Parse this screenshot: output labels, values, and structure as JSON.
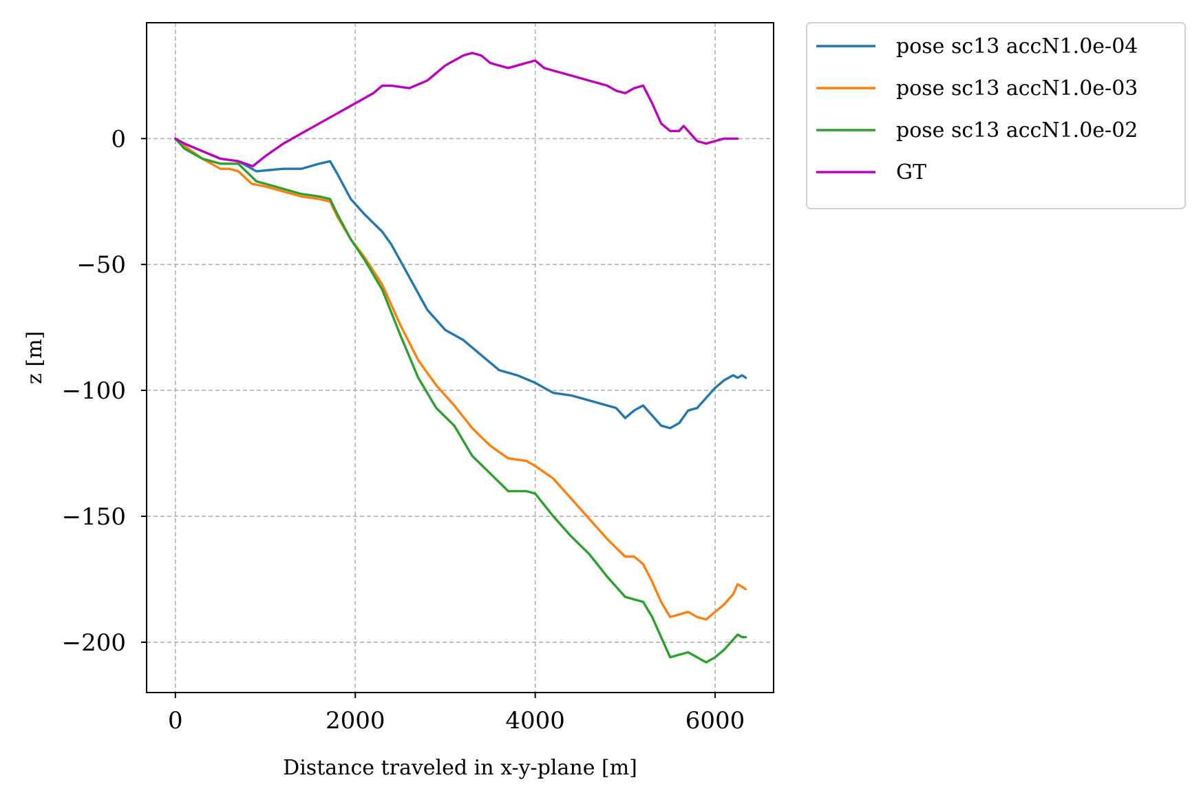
{
  "chart_data": {
    "type": "line",
    "title": "",
    "xlabel": "Distance traveled in x-y-plane [m]",
    "ylabel": "z [m]",
    "xlim": [
      -320,
      6650
    ],
    "ylim": [
      -220,
      46
    ],
    "x_ticks": [
      0,
      2000,
      4000,
      6000
    ],
    "y_ticks": [
      0,
      -50,
      -100,
      -150,
      -200
    ],
    "x_tick_labels": [
      "0",
      "2000",
      "4000",
      "6000"
    ],
    "y_tick_labels": [
      "0",
      "−50",
      "−100",
      "−150",
      "−200"
    ],
    "grid": true,
    "legend_position": "outside-top-right",
    "series": [
      {
        "name": "pose sc13 accN1.0e-04",
        "color": "#1f77b4",
        "x": [
          0,
          100,
          300,
          500,
          700,
          900,
          1200,
          1400,
          1600,
          1720,
          1800,
          1950,
          2100,
          2300,
          2400,
          2600,
          2800,
          3000,
          3200,
          3400,
          3600,
          3800,
          4000,
          4200,
          4400,
          4600,
          4800,
          4900,
          5000,
          5100,
          5200,
          5300,
          5400,
          5500,
          5600,
          5700,
          5800,
          5900,
          6000,
          6100,
          6200,
          6250,
          6300,
          6340
        ],
        "y": [
          0,
          -2,
          -5,
          -8,
          -9,
          -13,
          -12,
          -12,
          -10,
          -9,
          -14,
          -24,
          -30,
          -37,
          -42,
          -55,
          -68,
          -76,
          -80,
          -86,
          -92,
          -94,
          -97,
          -101,
          -102,
          -104,
          -106,
          -107,
          -111,
          -108,
          -106,
          -110,
          -114,
          -115,
          -113,
          -108,
          -107,
          -103,
          -99,
          -96,
          -94,
          -95,
          -94,
          -95
        ]
      },
      {
        "name": "pose sc13 accN1.0e-03",
        "color": "#ff7f0e",
        "x": [
          0,
          100,
          300,
          500,
          600,
          700,
          850,
          1000,
          1200,
          1400,
          1600,
          1720,
          1800,
          1950,
          2100,
          2300,
          2500,
          2700,
          2900,
          3100,
          3300,
          3500,
          3700,
          3900,
          4000,
          4200,
          4400,
          4600,
          4800,
          5000,
          5100,
          5200,
          5300,
          5400,
          5500,
          5600,
          5700,
          5800,
          5900,
          6000,
          6100,
          6200,
          6250,
          6300,
          6340
        ],
        "y": [
          0,
          -3,
          -8,
          -12,
          -12,
          -13,
          -18,
          -19,
          -21,
          -23,
          -24,
          -25,
          -31,
          -40,
          -47,
          -58,
          -74,
          -88,
          -98,
          -106,
          -115,
          -122,
          -127,
          -128,
          -130,
          -135,
          -143,
          -151,
          -159,
          -166,
          -166,
          -169,
          -176,
          -184,
          -190,
          -189,
          -188,
          -190,
          -191,
          -188,
          -185,
          -181,
          -177,
          -178,
          -179
        ]
      },
      {
        "name": "pose sc13 accN1.0e-02",
        "color": "#2ca02c",
        "x": [
          0,
          100,
          300,
          500,
          700,
          900,
          1200,
          1400,
          1600,
          1720,
          1800,
          1950,
          2100,
          2300,
          2500,
          2700,
          2900,
          3100,
          3300,
          3500,
          3700,
          3900,
          4000,
          4200,
          4400,
          4600,
          4800,
          5000,
          5100,
          5200,
          5300,
          5400,
          5500,
          5600,
          5700,
          5800,
          5900,
          6000,
          6100,
          6200,
          6250,
          6300,
          6340
        ],
        "y": [
          0,
          -4,
          -8,
          -10,
          -10,
          -17,
          -20,
          -22,
          -23,
          -24,
          -30,
          -40,
          -48,
          -60,
          -78,
          -95,
          -107,
          -114,
          -126,
          -133,
          -140,
          -140,
          -141,
          -150,
          -158,
          -165,
          -174,
          -182,
          -183,
          -184,
          -190,
          -198,
          -206,
          -205,
          -204,
          -206,
          -208,
          -206,
          -203,
          -199,
          -197,
          -198,
          -198
        ]
      },
      {
        "name": "GT",
        "color": "#bf00bf",
        "x": [
          0,
          100,
          300,
          500,
          700,
          860,
          1000,
          1200,
          1400,
          1600,
          1800,
          2000,
          2200,
          2300,
          2400,
          2600,
          2800,
          3000,
          3100,
          3200,
          3300,
          3400,
          3500,
          3600,
          3700,
          3800,
          3900,
          4000,
          4100,
          4200,
          4400,
          4600,
          4800,
          4900,
          5000,
          5100,
          5200,
          5300,
          5400,
          5500,
          5600,
          5650,
          5700,
          5800,
          5900,
          6000,
          6100,
          6200,
          6250
        ],
        "y": [
          0,
          -2,
          -5,
          -8,
          -9,
          -11,
          -7,
          -2,
          2,
          6,
          10,
          14,
          18,
          21,
          21,
          20,
          23,
          29,
          31,
          33,
          34,
          33,
          30,
          29,
          28,
          29,
          30,
          31,
          28,
          27,
          25,
          23,
          21,
          19,
          18,
          20,
          21,
          14,
          6,
          3,
          3,
          5,
          3,
          -1,
          -2,
          -1,
          0,
          0,
          0
        ]
      }
    ]
  }
}
